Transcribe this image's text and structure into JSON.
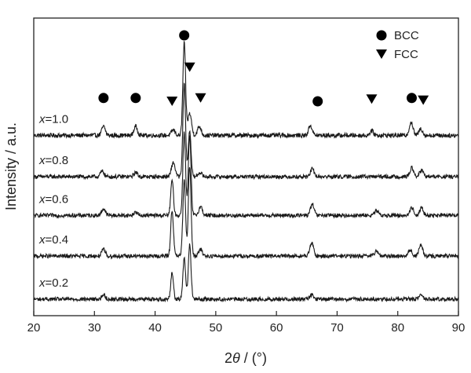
{
  "chart_data": {
    "type": "line",
    "xlabel": "2θ / (°)",
    "ylabel": "Intensity / a.u.",
    "xlim": [
      20,
      90
    ],
    "xticks": [
      20,
      30,
      40,
      50,
      60,
      70,
      80,
      90
    ],
    "grid": false,
    "legend": {
      "placement": "top-right",
      "entries": [
        {
          "label": "BCC",
          "marker": "circle"
        },
        {
          "label": "FCC",
          "marker": "triangle-down"
        }
      ]
    },
    "series": [
      {
        "name": "x=1.0",
        "label_var": "x",
        "label_val": "=1.0",
        "baseline": 0.82,
        "noise": 0.01,
        "peaks": [
          {
            "x": 31.5,
            "h": 0.04
          },
          {
            "x": 36.8,
            "h": 0.04
          },
          {
            "x": 43.0,
            "h": 0.025
          },
          {
            "x": 44.8,
            "h": 0.42
          },
          {
            "x": 45.7,
            "h": 0.1
          },
          {
            "x": 47.3,
            "h": 0.04
          },
          {
            "x": 65.6,
            "h": 0.045
          },
          {
            "x": 75.7,
            "h": 0.02
          },
          {
            "x": 82.2,
            "h": 0.06
          },
          {
            "x": 83.8,
            "h": 0.03
          }
        ]
      },
      {
        "name": "x=0.8",
        "label_var": "x",
        "label_val": "=0.8",
        "baseline": 0.632,
        "noise": 0.009,
        "peaks": [
          {
            "x": 31.3,
            "h": 0.025
          },
          {
            "x": 36.8,
            "h": 0.02
          },
          {
            "x": 43.0,
            "h": 0.065
          },
          {
            "x": 44.8,
            "h": 0.42
          },
          {
            "x": 45.7,
            "h": 0.21
          },
          {
            "x": 47.4,
            "h": 0.02
          },
          {
            "x": 65.9,
            "h": 0.035
          },
          {
            "x": 82.3,
            "h": 0.04
          },
          {
            "x": 83.9,
            "h": 0.03
          }
        ]
      },
      {
        "name": "x=0.6",
        "label_var": "x",
        "label_val": "=0.6",
        "baseline": 0.456,
        "noise": 0.009,
        "peaks": [
          {
            "x": 31.5,
            "h": 0.03
          },
          {
            "x": 36.8,
            "h": 0.015
          },
          {
            "x": 42.8,
            "h": 0.16
          },
          {
            "x": 44.8,
            "h": 0.38
          },
          {
            "x": 45.7,
            "h": 0.36
          },
          {
            "x": 47.5,
            "h": 0.04
          },
          {
            "x": 65.9,
            "h": 0.05
          },
          {
            "x": 76.5,
            "h": 0.02
          },
          {
            "x": 82.3,
            "h": 0.035
          },
          {
            "x": 83.9,
            "h": 0.035
          }
        ]
      },
      {
        "name": "x=0.4",
        "label_var": "x",
        "label_val": "=0.4",
        "baseline": 0.271,
        "noise": 0.009,
        "peaks": [
          {
            "x": 31.5,
            "h": 0.03
          },
          {
            "x": 42.8,
            "h": 0.21
          },
          {
            "x": 44.8,
            "h": 0.35
          },
          {
            "x": 45.7,
            "h": 0.41
          },
          {
            "x": 47.5,
            "h": 0.03
          },
          {
            "x": 65.8,
            "h": 0.06
          },
          {
            "x": 76.5,
            "h": 0.025
          },
          {
            "x": 82.0,
            "h": 0.03
          },
          {
            "x": 83.8,
            "h": 0.05
          }
        ]
      },
      {
        "name": "x=0.2",
        "label_var": "x",
        "label_val": "=0.2",
        "baseline": 0.075,
        "noise": 0.009,
        "peaks": [
          {
            "x": 31.5,
            "h": 0.02
          },
          {
            "x": 42.8,
            "h": 0.12
          },
          {
            "x": 44.8,
            "h": 0.19
          },
          {
            "x": 45.7,
            "h": 0.25
          },
          {
            "x": 65.8,
            "h": 0.02
          },
          {
            "x": 83.8,
            "h": 0.02
          }
        ]
      }
    ],
    "annotations": {
      "bcc_markers": [
        {
          "x": 31.5,
          "y": 0.99
        },
        {
          "x": 36.8,
          "y": 0.99
        },
        {
          "x": 44.8,
          "y": 1.275
        },
        {
          "x": 66.8,
          "y": 0.975
        },
        {
          "x": 82.3,
          "y": 0.99
        }
      ],
      "fcc_markers": [
        {
          "x": 42.8,
          "y": 0.975
        },
        {
          "x": 45.7,
          "y": 1.13
        },
        {
          "x": 47.5,
          "y": 0.99
        },
        {
          "x": 75.7,
          "y": 0.985
        },
        {
          "x": 84.2,
          "y": 0.98
        }
      ]
    }
  }
}
